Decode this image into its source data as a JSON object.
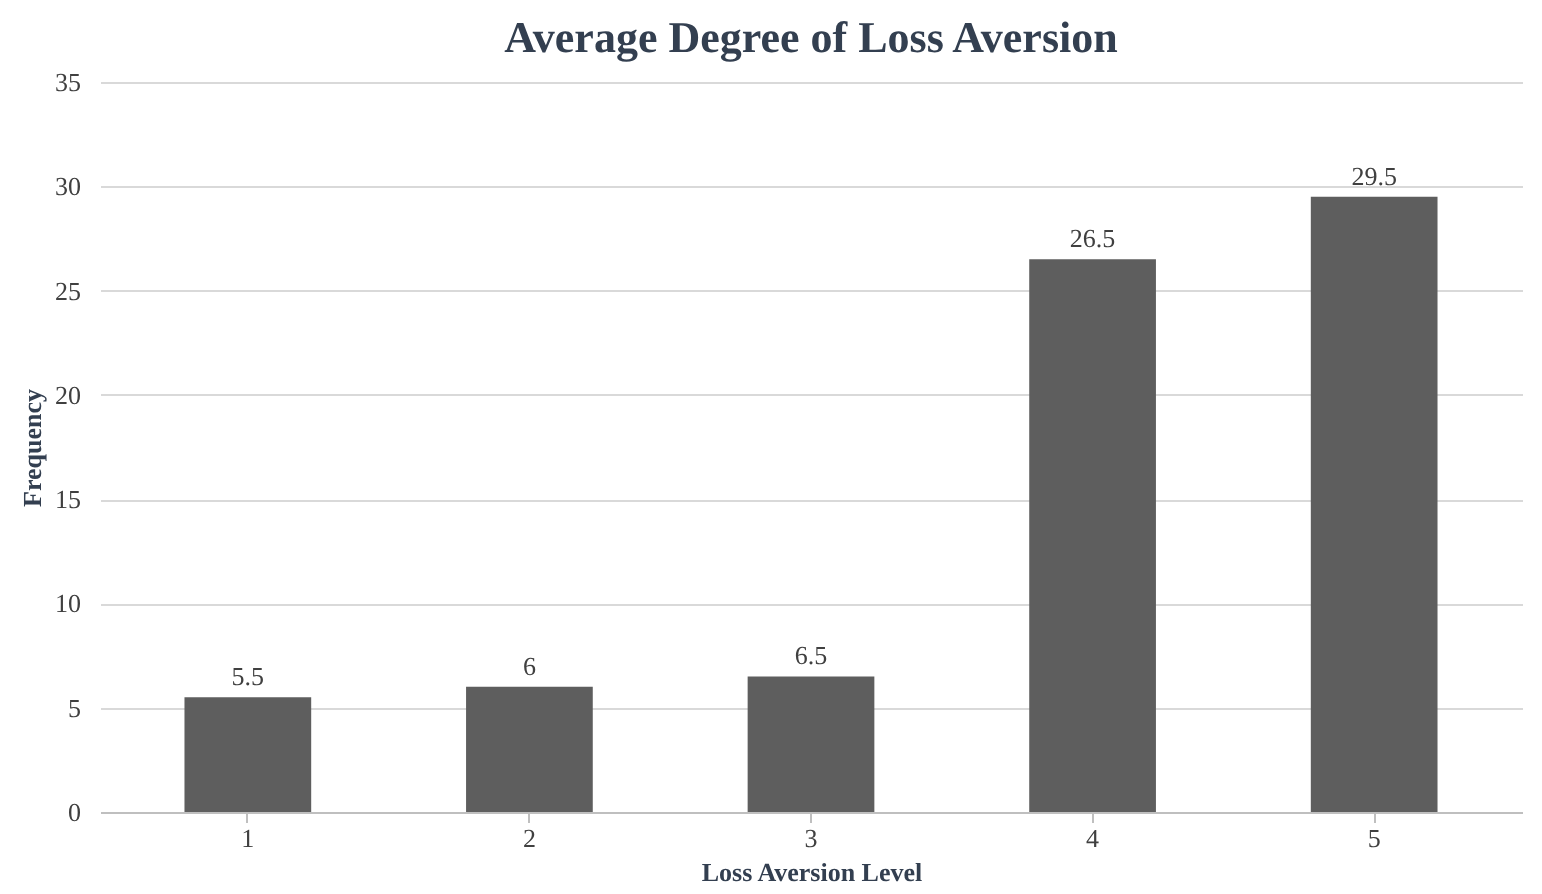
{
  "chart_data": {
    "type": "bar",
    "title": "Average Degree of Loss Aversion",
    "xlabel": "Loss Aversion Level",
    "ylabel": "Frequency",
    "categories": [
      "1",
      "2",
      "3",
      "4",
      "5"
    ],
    "values": [
      5.5,
      6,
      6.5,
      26.5,
      29.5
    ],
    "color": "#5e5e5e",
    "ylim": [
      0,
      35
    ],
    "yticks": [
      0,
      5,
      10,
      15,
      20,
      25,
      30,
      35
    ],
    "grid": "y",
    "data_labels": true
  }
}
